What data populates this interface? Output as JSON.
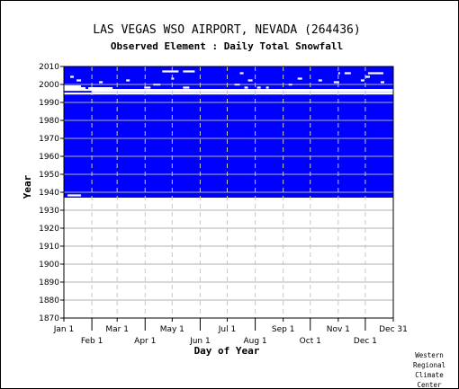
{
  "chart_data": {
    "type": "heatmap",
    "title": "LAS VEGAS WSO AIRPORT, NEVADA   (264436)",
    "subtitle": "Observed Element : Daily Total Snowfall",
    "xlabel": "Day of Year",
    "ylabel": "Year",
    "ylim": [
      1870,
      2010
    ],
    "ytick_step": 10,
    "xtick_labels_top": [
      "Jan 1",
      "Mar 1",
      "May 1",
      "Jul 1",
      "Sep 1",
      "Nov 1",
      "Dec 31"
    ],
    "xtick_labels_bottom": [
      "Feb 1",
      "Apr 1",
      "Jun 1",
      "Aug 1",
      "Oct 1",
      "Dec 1"
    ],
    "month_start_days": [
      1,
      32,
      60,
      91,
      121,
      152,
      182,
      213,
      244,
      274,
      305,
      335,
      366
    ],
    "grid": true,
    "data_color": "#0000ff",
    "missing_color": "#ffffff",
    "record_start_year": 1937,
    "record_start_day": 1,
    "record_end_year": 2010,
    "missing_segments": [
      {
        "year": 1938.3,
        "start_day": 5,
        "end_day": 20
      },
      {
        "year": 1995,
        "start_day": 1,
        "end_day": 366
      },
      {
        "year": 1996.2,
        "start_day": 32,
        "end_day": 60
      },
      {
        "year": 1996.2,
        "start_day": 60,
        "end_day": 366
      },
      {
        "year": 1997,
        "start_day": 1,
        "end_day": 366
      },
      {
        "year": 1998,
        "start_day": 1,
        "end_day": 25
      },
      {
        "year": 1998,
        "start_day": 28,
        "end_day": 55
      },
      {
        "year": 1998.3,
        "start_day": 90,
        "end_day": 97
      },
      {
        "year": 1998.3,
        "start_day": 133,
        "end_day": 140
      },
      {
        "year": 1998.3,
        "start_day": 201,
        "end_day": 205
      },
      {
        "year": 1998.3,
        "start_day": 215,
        "end_day": 219
      },
      {
        "year": 1998.3,
        "start_day": 225,
        "end_day": 228
      },
      {
        "year": 1999,
        "start_day": 1,
        "end_day": 20
      },
      {
        "year": 2000,
        "start_day": 100,
        "end_day": 108
      },
      {
        "year": 2000,
        "start_day": 190,
        "end_day": 196
      },
      {
        "year": 2000,
        "start_day": 250,
        "end_day": 254
      },
      {
        "year": 2001.3,
        "start_day": 40,
        "end_day": 44
      },
      {
        "year": 2001.3,
        "start_day": 300,
        "end_day": 306
      },
      {
        "year": 2001.3,
        "start_day": 352,
        "end_day": 356
      },
      {
        "year": 2002.3,
        "start_day": 15,
        "end_day": 20
      },
      {
        "year": 2002.3,
        "start_day": 70,
        "end_day": 74
      },
      {
        "year": 2002.3,
        "start_day": 205,
        "end_day": 210
      },
      {
        "year": 2002.3,
        "start_day": 283,
        "end_day": 287
      },
      {
        "year": 2002.3,
        "start_day": 330,
        "end_day": 334
      },
      {
        "year": 2003.3,
        "start_day": 120,
        "end_day": 123
      },
      {
        "year": 2003.3,
        "start_day": 260,
        "end_day": 265
      },
      {
        "year": 2004.3,
        "start_day": 8,
        "end_day": 12
      },
      {
        "year": 2004.3,
        "start_day": 335,
        "end_day": 340
      },
      {
        "year": 2006.3,
        "start_day": 196,
        "end_day": 200
      },
      {
        "year": 2006.3,
        "start_day": 305,
        "end_day": 307
      },
      {
        "year": 2006.3,
        "start_day": 312,
        "end_day": 319
      },
      {
        "year": 2006.3,
        "start_day": 338,
        "end_day": 355
      },
      {
        "year": 2007.3,
        "start_day": 110,
        "end_day": 128
      },
      {
        "year": 2007.3,
        "start_day": 133,
        "end_day": 146
      }
    ]
  },
  "credit_lines": [
    "Western",
    "Regional",
    "Climate",
    "Center"
  ]
}
